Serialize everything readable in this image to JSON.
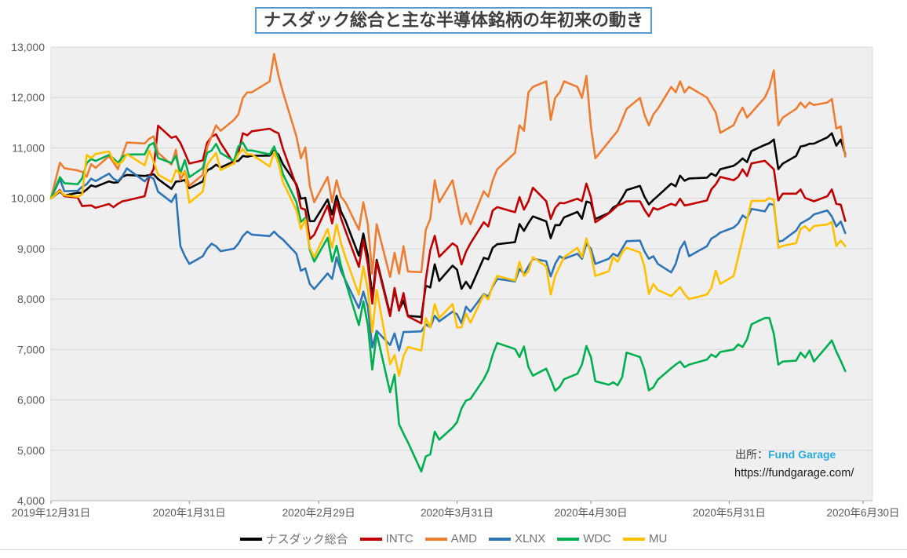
{
  "title": "ナスダック総合と主な半導体銘柄の年初来の動き",
  "source": {
    "prefix": "出所：",
    "name": "Fund Garage",
    "url": "https://fundgarage.com/"
  },
  "colors": {
    "title_border": "#5b9bd5",
    "source_name": "#29abe2",
    "plot_background": "#efefef",
    "gridline": "#d9d9d9",
    "axis_line": "#b7b7b7",
    "axis_text": "#595959",
    "legend_text": "#737373"
  },
  "chart_data": {
    "type": "line",
    "title": "ナスダック総合と主な半導体銘柄の年初来の動き",
    "xlabel": "",
    "ylabel": "",
    "grid": "horizontal",
    "legend_position": "bottom",
    "y_axis": {
      "min": 4000,
      "max": 13000,
      "step": 1000,
      "tick_labels": [
        "4,000",
        "5,000",
        "6,000",
        "7,000",
        "8,000",
        "9,000",
        "10,000",
        "11,000",
        "12,000",
        "13,000"
      ]
    },
    "x_axis": {
      "total_days": 182,
      "tick_days": [
        0,
        31,
        60,
        91,
        121,
        152,
        182
      ],
      "tick_labels": [
        "2019年12月31日",
        "2020年1月31日",
        "2020年2月29日",
        "2020年3月31日",
        "2020年4月30日",
        "2020年5月31日",
        "2020年6月30日"
      ]
    },
    "days": [
      0,
      2,
      3,
      6,
      7,
      8,
      9,
      10,
      13,
      14,
      15,
      16,
      17,
      21,
      22,
      23,
      24,
      27,
      28,
      29,
      30,
      31,
      34,
      35,
      36,
      37,
      38,
      41,
      42,
      43,
      44,
      45,
      49,
      50,
      51,
      52,
      55,
      56,
      57,
      58,
      59,
      62,
      63,
      64,
      65,
      66,
      69,
      70,
      71,
      72,
      73,
      76,
      77,
      78,
      79,
      80,
      83,
      84,
      85,
      86,
      87,
      90,
      91,
      92,
      93,
      94,
      97,
      98,
      99,
      100,
      104,
      105,
      106,
      107,
      108,
      111,
      112,
      113,
      114,
      115,
      118,
      119,
      120,
      121,
      122,
      125,
      126,
      127,
      128,
      129,
      132,
      133,
      134,
      135,
      136,
      139,
      140,
      141,
      142,
      143,
      147,
      148,
      149,
      150,
      153,
      154,
      155,
      156,
      157,
      160,
      161,
      162,
      163,
      164,
      167,
      168,
      169,
      170,
      171,
      174,
      175,
      176,
      177,
      178
    ],
    "series": [
      {
        "name": "ナスダック総合",
        "color": "#000000",
        "values": [
          10000,
          10133,
          10054,
          10110,
          10107,
          10174,
          10257,
          10230,
          10336,
          10310,
          10319,
          10428,
          10464,
          10444,
          10457,
          10478,
          10381,
          10186,
          10332,
          10337,
          10364,
          10199,
          10335,
          10552,
          10598,
          10668,
          10611,
          10731,
          10742,
          10840,
          10824,
          10845,
          10846,
          10941,
          10867,
          10674,
          10277,
          9993,
          10009,
          9547,
          9548,
          9977,
          9678,
          10051,
          9740,
          9558,
          8861,
          9300,
          8863,
          8026,
          8777,
          7695,
          8174,
          7790,
          7970,
          7668,
          7646,
          8267,
          8230,
          8690,
          8361,
          8664,
          8582,
          8204,
          8344,
          8217,
          8819,
          8790,
          9017,
          9088,
          9130,
          9491,
          9354,
          9509,
          9641,
          9541,
          9209,
          9468,
          9467,
          9623,
          9730,
          9593,
          9935,
          9908,
          9590,
          9707,
          9818,
          9868,
          10007,
          10165,
          10245,
          10034,
          9878,
          9968,
          10046,
          10291,
          10237,
          10449,
          10348,
          10393,
          10409,
          10491,
          10442,
          10577,
          10646,
          10708,
          10792,
          10717,
          10938,
          11060,
          11094,
          11167,
          10580,
          10687,
          10840,
          11028,
          11046,
          11082,
          11085,
          11208,
          11291,
          11044,
          11164,
          10874
        ]
      },
      {
        "name": "INTC",
        "color": "#c00000",
        "values": [
          10000,
          10165,
          10042,
          10013,
          9846,
          9853,
          9860,
          9811,
          9888,
          9824,
          9891,
          9941,
          9958,
          10042,
          10413,
          10580,
          11440,
          11200,
          11230,
          11100,
          10900,
          10690,
          10752,
          11100,
          11220,
          11270,
          11100,
          10690,
          10900,
          11290,
          11250,
          11330,
          11380,
          11330,
          11290,
          10980,
          10242,
          9808,
          9774,
          9190,
          9277,
          9858,
          9501,
          9942,
          9607,
          9357,
          8638,
          9173,
          8688,
          7911,
          8738,
          7662,
          8221,
          7769,
          8120,
          7657,
          7519,
          8388,
          8972,
          9256,
          8839,
          9106,
          9043,
          8688,
          8939,
          9106,
          9524,
          9440,
          9758,
          9825,
          9724,
          10025,
          9775,
          9942,
          10209,
          9942,
          9591,
          9808,
          9908,
          9902,
          9992,
          9942,
          10292,
          10022,
          9524,
          9700,
          9775,
          9858,
          9891,
          9941,
          9941,
          9775,
          9641,
          9808,
          9775,
          9891,
          9858,
          9992,
          9858,
          9875,
          9958,
          10175,
          10276,
          10425,
          10359,
          10425,
          10576,
          10442,
          10693,
          10743,
          10660,
          10576,
          9958,
          10092,
          10092,
          10175,
          10008,
          9975,
          9941,
          10042,
          10175,
          9891,
          9874,
          9551
        ]
      },
      {
        "name": "AMD",
        "color": "#ed7d31",
        "values": [
          10000,
          10707,
          10598,
          10552,
          10521,
          10430,
          10678,
          10604,
          10835,
          10709,
          10578,
          10857,
          11106,
          11088,
          11180,
          11230,
          10903,
          10670,
          10964,
          10360,
          10543,
          10249,
          10467,
          11012,
          11230,
          11448,
          11339,
          11557,
          11666,
          11993,
          12102,
          12102,
          12320,
          12865,
          12429,
          12102,
          11230,
          10794,
          11012,
          10249,
          9921,
          10423,
          9921,
          10357,
          10031,
          9921,
          9376,
          9921,
          9485,
          8504,
          9485,
          8439,
          8919,
          8504,
          9049,
          8548,
          8535,
          9376,
          9594,
          10357,
          9921,
          10357,
          9917,
          9485,
          9703,
          9485,
          10139,
          10031,
          10357,
          10575,
          10903,
          11448,
          11339,
          12102,
          12211,
          12320,
          11557,
          11993,
          12102,
          12320,
          12211,
          11993,
          12429,
          11426,
          10794,
          11121,
          11230,
          11339,
          11557,
          11775,
          11993,
          11666,
          11448,
          11666,
          11775,
          12211,
          12102,
          12320,
          12102,
          12211,
          12000,
          11850,
          11700,
          11300,
          11450,
          11650,
          11800,
          11600,
          11700,
          12000,
          12200,
          12538,
          11448,
          11600,
          11775,
          11900,
          11800,
          11900,
          11850,
          11900,
          11971,
          11383,
          11426,
          10827
        ]
      },
      {
        "name": "XLNX",
        "color": "#2e75b6",
        "values": [
          10000,
          10380,
          10140,
          10150,
          10230,
          10280,
          10390,
          10340,
          10490,
          10390,
          10340,
          10438,
          10592,
          10336,
          10438,
          10387,
          10131,
          9927,
          10080,
          9053,
          8852,
          8698,
          8850,
          9000,
          9100,
          9050,
          8950,
          9000,
          9100,
          9250,
          9340,
          9280,
          9250,
          9340,
          9250,
          9180,
          8900,
          8560,
          8610,
          8300,
          8200,
          8510,
          8400,
          8830,
          8560,
          8370,
          7820,
          8150,
          7850,
          7040,
          7370,
          7090,
          7320,
          6980,
          7350,
          7350,
          7360,
          7500,
          7440,
          7670,
          7560,
          7750,
          7700,
          7520,
          7850,
          7750,
          8100,
          8050,
          8250,
          8400,
          8350,
          8600,
          8500,
          8650,
          8800,
          8750,
          8450,
          8700,
          8850,
          8800,
          8900,
          8800,
          9100,
          9000,
          8700,
          8800,
          8900,
          8850,
          9000,
          9150,
          9160,
          8950,
          8800,
          8850,
          8700,
          8530,
          8700,
          9000,
          9140,
          8850,
          9050,
          9200,
          9250,
          9320,
          9420,
          9500,
          9660,
          9600,
          9790,
          9740,
          9890,
          9870,
          9140,
          9160,
          9360,
          9500,
          9550,
          9600,
          9680,
          9760,
          9640,
          9440,
          9540,
          9310
        ]
      },
      {
        "name": "WDC",
        "color": "#00b050",
        "values": [
          10000,
          10420,
          10300,
          10280,
          10400,
          10700,
          10780,
          10740,
          10860,
          10790,
          10700,
          10820,
          10870,
          10870,
          11050,
          11100,
          10800,
          10700,
          10840,
          10500,
          10760,
          10420,
          10600,
          10900,
          10950,
          11080,
          10900,
          10740,
          11029,
          11107,
          10950,
          10950,
          10871,
          11029,
          10792,
          10477,
          9926,
          9532,
          9611,
          8980,
          8744,
          9217,
          8744,
          9059,
          8665,
          8351,
          7484,
          7956,
          7484,
          6600,
          7326,
          6150,
          6500,
          5520,
          5330,
          5160,
          4580,
          4880,
          4920,
          5370,
          5210,
          5450,
          5560,
          5830,
          5987,
          6020,
          6410,
          6590,
          6900,
          7130,
          7010,
          6850,
          7060,
          6650,
          6480,
          6620,
          6410,
          6180,
          6260,
          6410,
          6520,
          6700,
          7070,
          6850,
          6370,
          6300,
          6350,
          6290,
          6450,
          6940,
          6850,
          6600,
          6190,
          6250,
          6400,
          6630,
          6700,
          6760,
          6650,
          6700,
          6800,
          6900,
          6850,
          6950,
          7000,
          7100,
          7050,
          7200,
          7500,
          7625,
          7625,
          7310,
          6700,
          6760,
          6780,
          6940,
          6840,
          6980,
          6760,
          7074,
          7180,
          6960,
          6774,
          6570
        ]
      },
      {
        "name": "MU",
        "color": "#ffc000",
        "values": [
          10000,
          10150,
          10060,
          10030,
          10080,
          10860,
          10800,
          10880,
          10930,
          10750,
          10670,
          10730,
          10880,
          10655,
          10950,
          10730,
          10470,
          10320,
          10560,
          10490,
          10520,
          9911,
          10134,
          10660,
          10785,
          10900,
          10560,
          10692,
          10878,
          10971,
          10870,
          10870,
          10630,
          10920,
          10692,
          10320,
          9763,
          9391,
          9577,
          9019,
          8832,
          9391,
          9019,
          9484,
          9112,
          8832,
          8088,
          8646,
          8181,
          7344,
          8181,
          6710,
          6890,
          6480,
          6870,
          7050,
          6980,
          7623,
          7437,
          7902,
          7623,
          7902,
          7437,
          7440,
          7716,
          7530,
          8088,
          7995,
          8274,
          8460,
          8367,
          8739,
          8460,
          8553,
          8832,
          8646,
          8088,
          8460,
          8646,
          8832,
          9019,
          8832,
          9205,
          8907,
          8460,
          8553,
          8832,
          8739,
          8925,
          9019,
          8925,
          8646,
          8100,
          8300,
          8181,
          8060,
          8150,
          8240,
          8100,
          8000,
          8090,
          8220,
          8560,
          8300,
          8460,
          8832,
          9205,
          9577,
          9950,
          9950,
          10004,
          9967,
          9019,
          9055,
          9112,
          9391,
          9447,
          9354,
          9450,
          9480,
          9530,
          9055,
          9160,
          9050
        ]
      }
    ]
  }
}
